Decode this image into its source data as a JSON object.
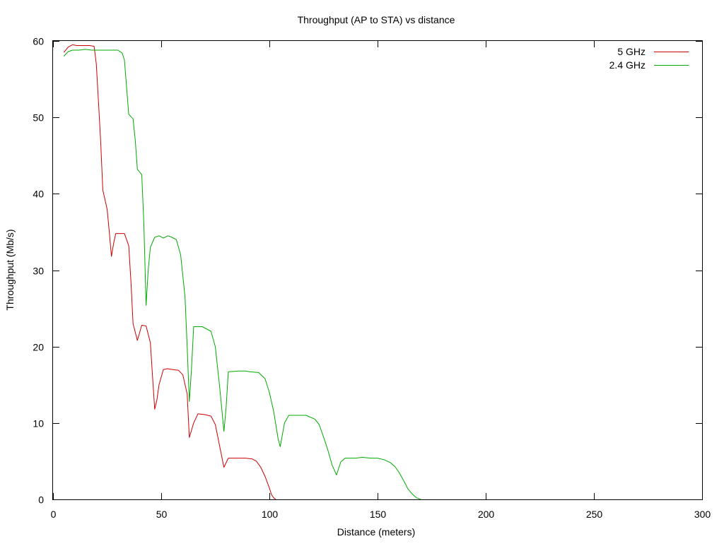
{
  "chart_data": {
    "type": "line",
    "title": "Throughput (AP to STA) vs distance",
    "xlabel": "Distance (meters)",
    "ylabel": "Throughput (Mb/s)",
    "xlim": [
      0,
      300
    ],
    "ylim": [
      0,
      60
    ],
    "xticks": [
      "0",
      "50",
      "100",
      "150",
      "200",
      "250",
      "300"
    ],
    "yticks": [
      "0",
      "10",
      "20",
      "30",
      "40",
      "50",
      "60"
    ],
    "grid": false,
    "legend": "top-right",
    "series": [
      {
        "name": "5 GHz",
        "color": "#cc0000",
        "points": [
          [
            5,
            58.5
          ],
          [
            7,
            59.2
          ],
          [
            9,
            59.5
          ],
          [
            11,
            59.4
          ],
          [
            13,
            59.4
          ],
          [
            15,
            59.4
          ],
          [
            17,
            59.4
          ],
          [
            19,
            59.3
          ],
          [
            20,
            57.0
          ],
          [
            21,
            52.0
          ],
          [
            22,
            47.0
          ],
          [
            23,
            40.5
          ],
          [
            25,
            38.0
          ],
          [
            26,
            35.0
          ],
          [
            27,
            31.8
          ],
          [
            28,
            33.5
          ],
          [
            29,
            34.8
          ],
          [
            31,
            34.8
          ],
          [
            33,
            34.8
          ],
          [
            35,
            33.2
          ],
          [
            36,
            28.5
          ],
          [
            37,
            23.0
          ],
          [
            39,
            20.8
          ],
          [
            41,
            22.8
          ],
          [
            43,
            22.7
          ],
          [
            45,
            20.5
          ],
          [
            46,
            16.0
          ],
          [
            47,
            11.8
          ],
          [
            48,
            13.0
          ],
          [
            49,
            15.0
          ],
          [
            51,
            17.0
          ],
          [
            53,
            17.1
          ],
          [
            55,
            17.0
          ],
          [
            58,
            16.9
          ],
          [
            60,
            16.3
          ],
          [
            62,
            13.8
          ],
          [
            63,
            8.1
          ],
          [
            65,
            10.0
          ],
          [
            67,
            11.2
          ],
          [
            70,
            11.1
          ],
          [
            73,
            10.9
          ],
          [
            75,
            9.8
          ],
          [
            77,
            7.0
          ],
          [
            79,
            4.2
          ],
          [
            81,
            5.4
          ],
          [
            85,
            5.4
          ],
          [
            89,
            5.4
          ],
          [
            92,
            5.3
          ],
          [
            94,
            5.0
          ],
          [
            96,
            4.2
          ],
          [
            98,
            3.0
          ],
          [
            100,
            1.5
          ],
          [
            101,
            0.6
          ],
          [
            102,
            0.2
          ],
          [
            103,
            0.0
          ]
        ]
      },
      {
        "name": "2.4 GHz",
        "color": "#00aa00",
        "points": [
          [
            5,
            58.0
          ],
          [
            7,
            58.6
          ],
          [
            9,
            58.8
          ],
          [
            12,
            58.8
          ],
          [
            15,
            58.9
          ],
          [
            18,
            58.8
          ],
          [
            21,
            58.8
          ],
          [
            24,
            58.8
          ],
          [
            27,
            58.8
          ],
          [
            30,
            58.8
          ],
          [
            32,
            58.4
          ],
          [
            33,
            57.5
          ],
          [
            34,
            54.0
          ],
          [
            35,
            50.4
          ],
          [
            37,
            49.8
          ],
          [
            38,
            47.0
          ],
          [
            39,
            43.2
          ],
          [
            41,
            42.5
          ],
          [
            42,
            36.0
          ],
          [
            43,
            25.4
          ],
          [
            44,
            30.0
          ],
          [
            45,
            33.0
          ],
          [
            47,
            34.3
          ],
          [
            49,
            34.5
          ],
          [
            51,
            34.2
          ],
          [
            53,
            34.5
          ],
          [
            55,
            34.3
          ],
          [
            57,
            34.0
          ],
          [
            59,
            32.0
          ],
          [
            61,
            26.5
          ],
          [
            62,
            20.0
          ],
          [
            63,
            12.8
          ],
          [
            64,
            17.0
          ],
          [
            65,
            22.6
          ],
          [
            69,
            22.6
          ],
          [
            73,
            22.0
          ],
          [
            75,
            20.0
          ],
          [
            77,
            14.8
          ],
          [
            79,
            8.9
          ],
          [
            80,
            12.0
          ],
          [
            81,
            16.7
          ],
          [
            86,
            16.8
          ],
          [
            89,
            16.8
          ],
          [
            91,
            16.7
          ],
          [
            95,
            16.6
          ],
          [
            98,
            15.8
          ],
          [
            100,
            14.0
          ],
          [
            102,
            11.5
          ],
          [
            104,
            8.0
          ],
          [
            105,
            6.9
          ],
          [
            107,
            10.0
          ],
          [
            109,
            11.0
          ],
          [
            113,
            11.0
          ],
          [
            117,
            11.0
          ],
          [
            121,
            10.5
          ],
          [
            123,
            9.8
          ],
          [
            125,
            8.2
          ],
          [
            127,
            6.5
          ],
          [
            129,
            4.5
          ],
          [
            131,
            3.2
          ],
          [
            133,
            4.9
          ],
          [
            135,
            5.4
          ],
          [
            140,
            5.4
          ],
          [
            143,
            5.5
          ],
          [
            147,
            5.4
          ],
          [
            150,
            5.4
          ],
          [
            153,
            5.2
          ],
          [
            156,
            4.8
          ],
          [
            158,
            4.3
          ],
          [
            160,
            3.5
          ],
          [
            162,
            2.5
          ],
          [
            164,
            1.4
          ],
          [
            166,
            0.7
          ],
          [
            168,
            0.2
          ],
          [
            170,
            0.0
          ]
        ]
      }
    ]
  }
}
